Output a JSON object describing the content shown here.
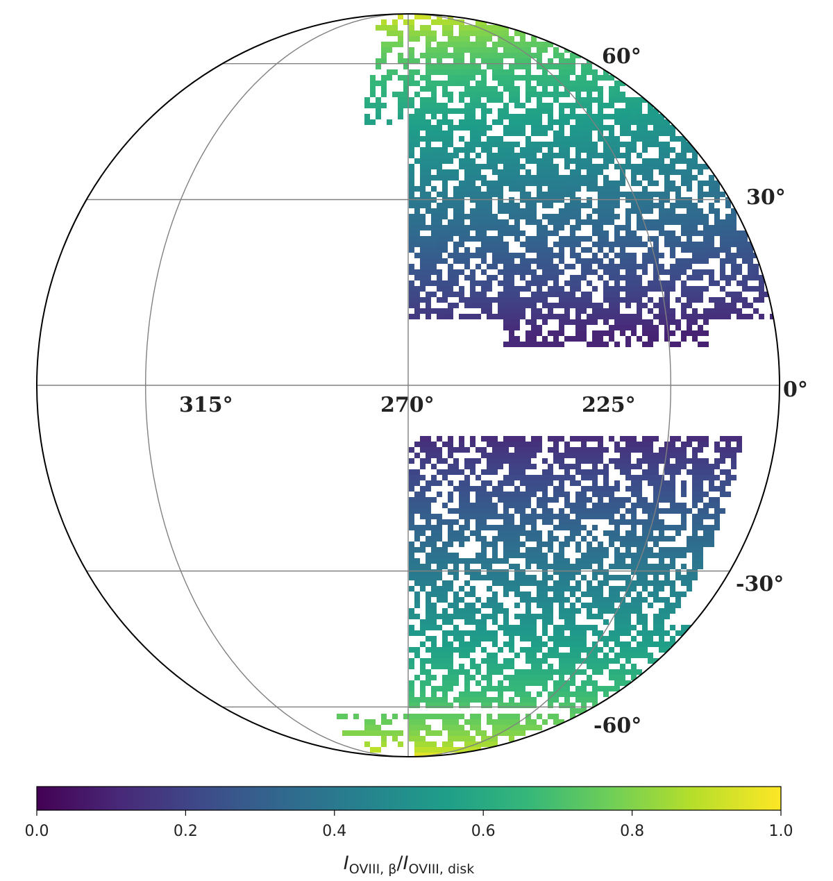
{
  "chart_data": {
    "type": "heatmap",
    "projection": "orthographic-hemisphere",
    "coordinate_system": "galactic",
    "center_longitude_deg": 270,
    "center_latitude_deg": 0,
    "longitude_labels": [
      "315°",
      "270°",
      "225°"
    ],
    "latitude_labels": [
      "60°",
      "30°",
      "0°",
      "-30°",
      "-60°"
    ],
    "graticule_longitudes_deg": [
      315,
      270,
      225
    ],
    "graticule_latitudes_deg": [
      60,
      30,
      0,
      -30,
      -60
    ],
    "masked_region": "pixels shown only in mapped sky regions; blank elsewhere",
    "value_trend": "ratio near 1.0 close to the galactic poles, decreasing toward |b| ≈ 10°, minimum ≈ 0.1 near b ≈ +10°",
    "colorbar": {
      "colormap": "viridis",
      "range": [
        0.0,
        1.0
      ],
      "ticks": [
        "0.0",
        "0.2",
        "0.4",
        "0.6",
        "0.8",
        "1.0"
      ],
      "colors": [
        "#440154",
        "#482878",
        "#3e4a89",
        "#31688e",
        "#26828e",
        "#1f9e89",
        "#35b779",
        "#6ece58",
        "#b5de2b",
        "#fde725"
      ]
    },
    "colorbar_label": {
      "main_1": "I",
      "sub_1": "OVIII, β",
      "sep": "/",
      "main_2": "I",
      "sub_2": "OVIII, disk"
    }
  }
}
